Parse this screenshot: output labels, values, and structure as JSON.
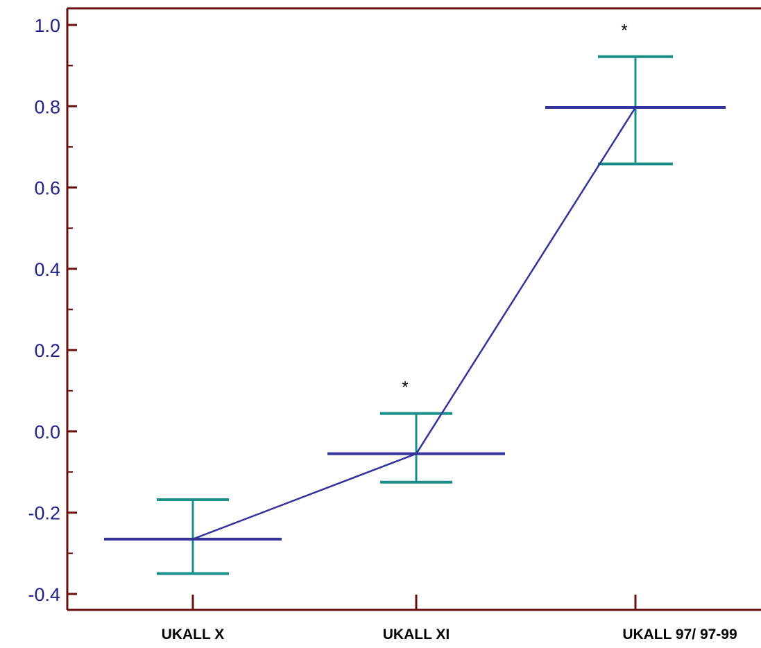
{
  "chart_data": {
    "type": "line",
    "categories": [
      "UKALL X",
      "UKALL XI",
      "UKALL 97/ 97-99"
    ],
    "series": [
      {
        "values": [
          -0.265,
          -0.055,
          0.797
        ],
        "error_lower": [
          -0.35,
          -0.125,
          0.658
        ],
        "error_upper": [
          -0.168,
          0.044,
          0.922
        ]
      }
    ],
    "annotations": [
      "",
      "*",
      "*"
    ],
    "ylim": [
      -0.44,
      1.04
    ],
    "yticks": [
      1.0,
      0.8,
      0.6,
      0.4,
      0.2,
      0.0,
      -0.2,
      -0.4
    ],
    "ytick_labels": [
      "1.0",
      "0.8",
      "0.6",
      "0.4",
      "0.2",
      "0.0",
      "-0.2",
      "-0.4"
    ],
    "title": "",
    "xlabel": "",
    "ylabel": "",
    "grid": false,
    "colors": {
      "axis": "#6b0f0f",
      "mean": "#33339a",
      "error": "#1a8f8a",
      "tick_label": "#1f1f8a"
    }
  }
}
